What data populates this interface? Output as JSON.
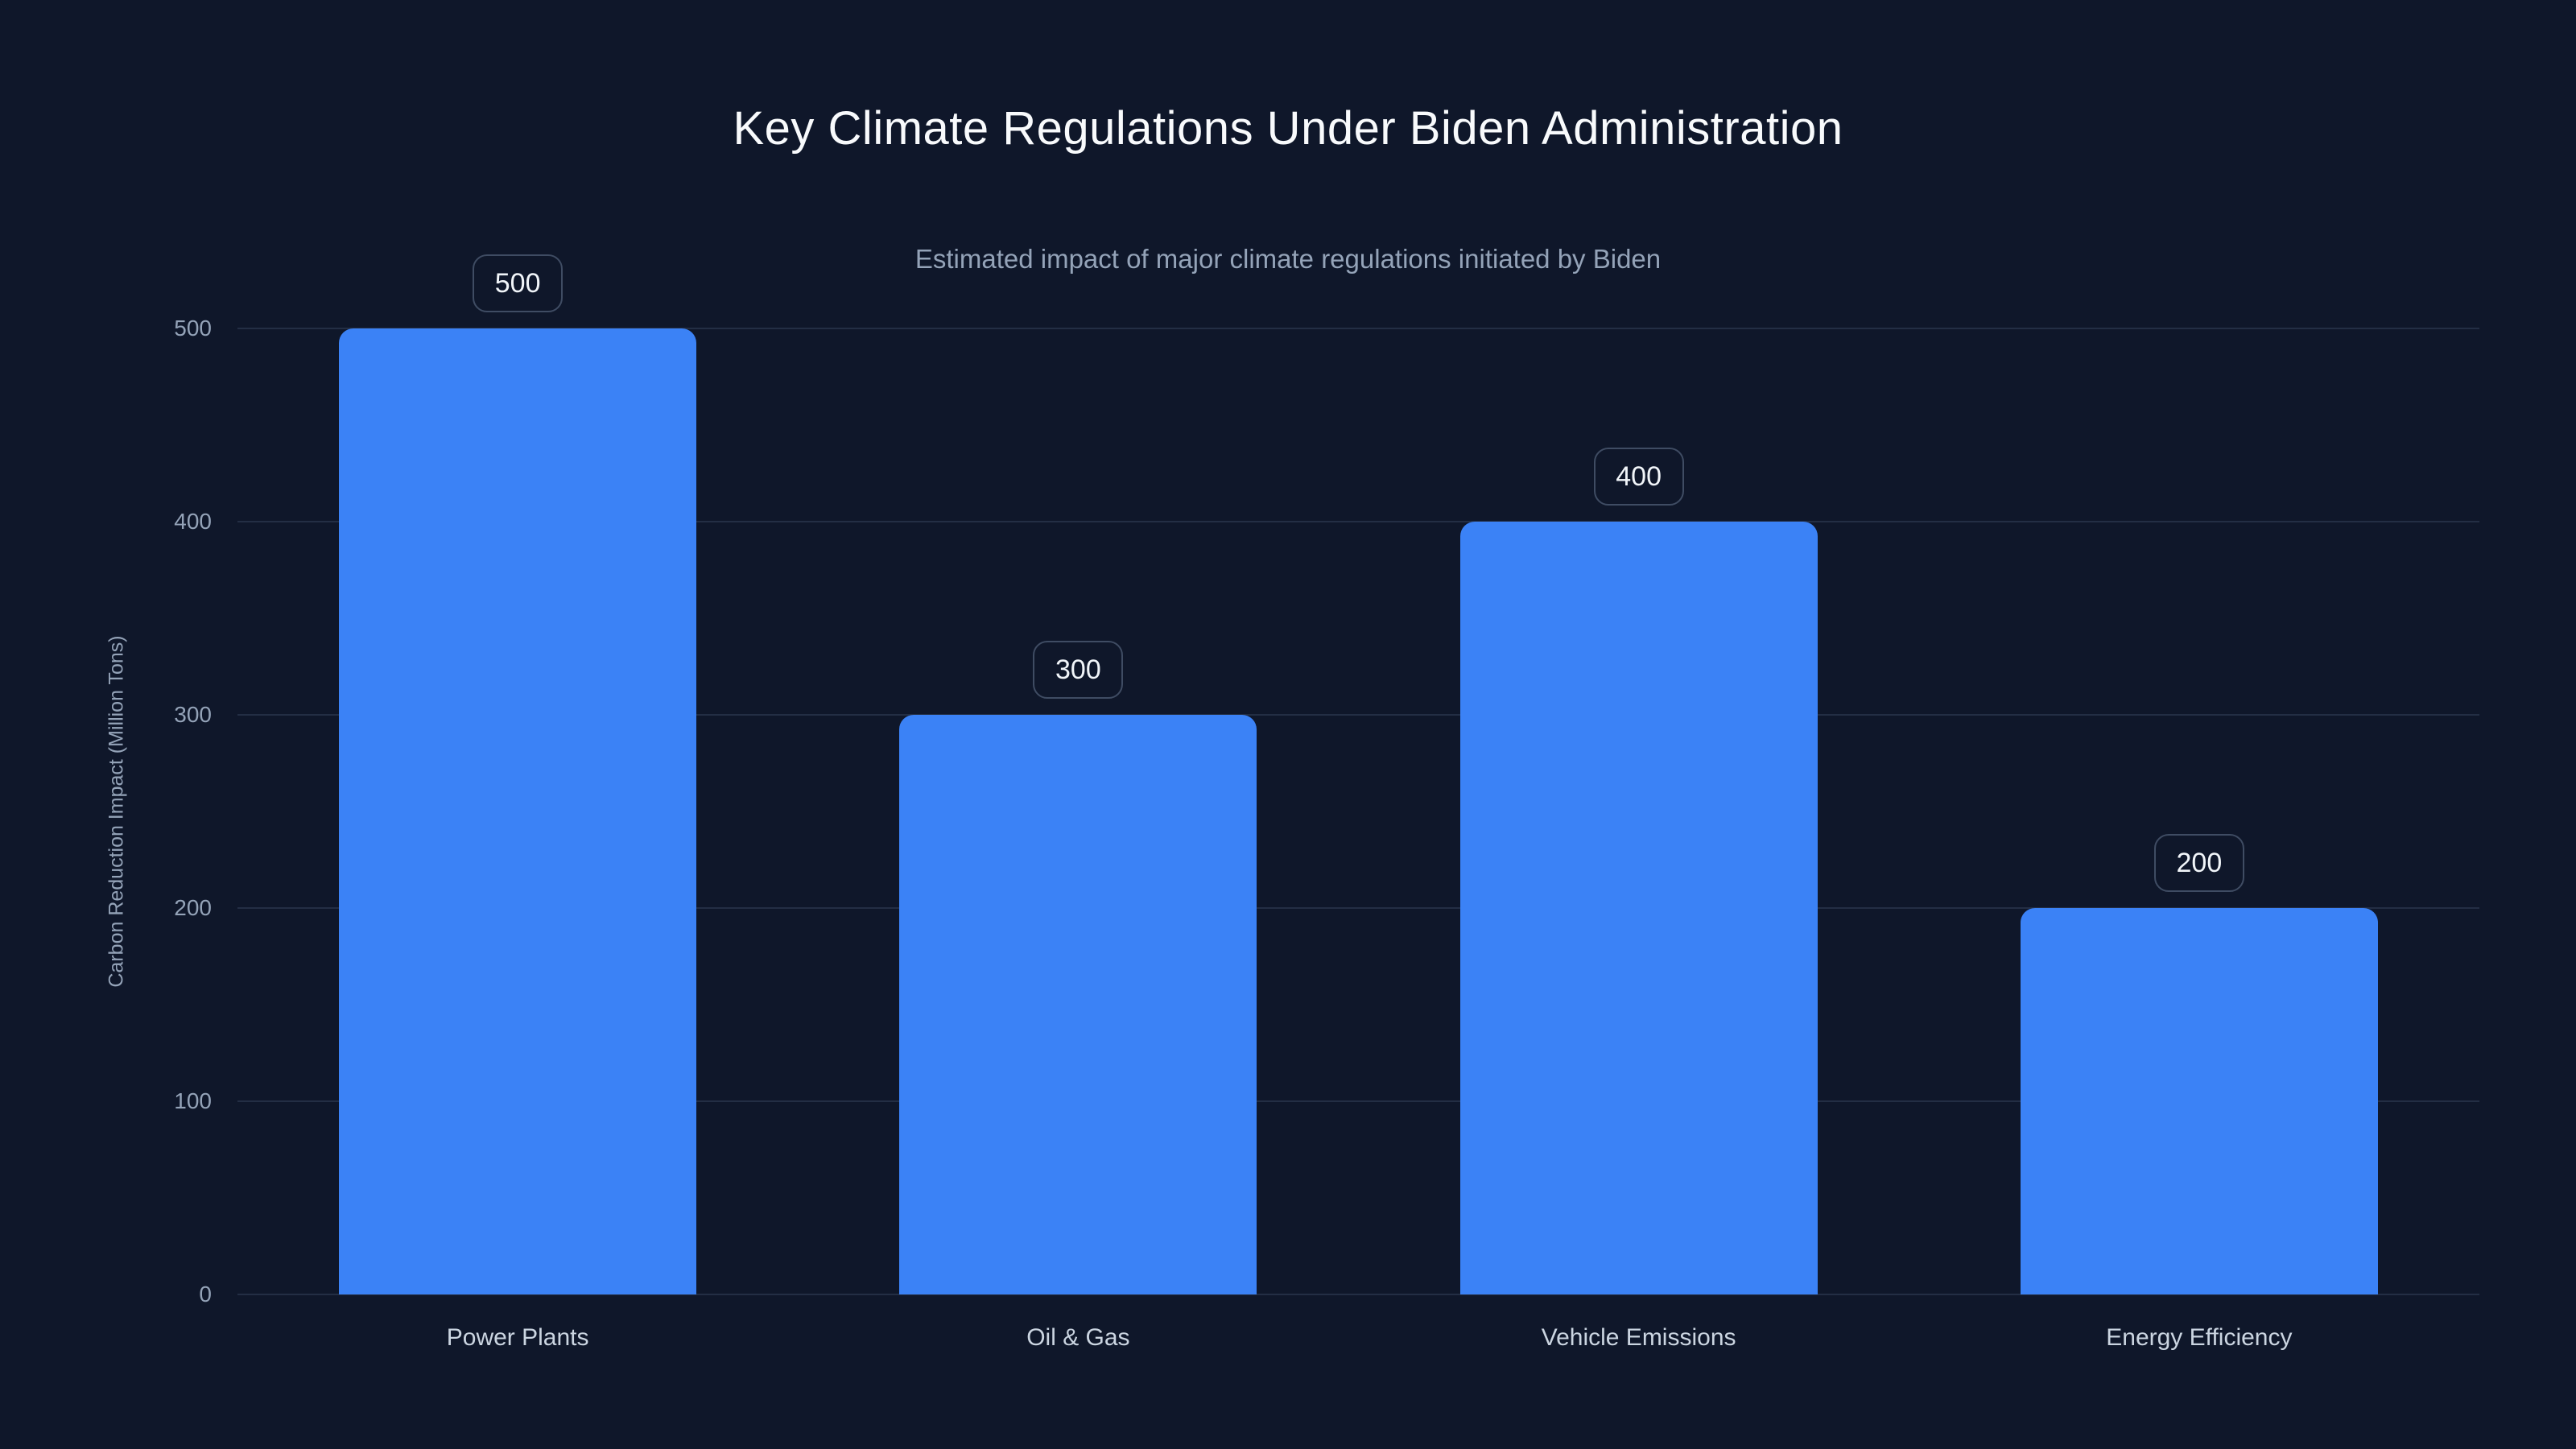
{
  "chart_data": {
    "type": "bar",
    "title": "Key Climate Regulations Under Biden Administration",
    "subtitle": "Estimated impact of major climate regulations initiated by Biden",
    "xlabel": "",
    "ylabel": "Carbon Reduction Impact (Million Tons)",
    "categories": [
      "Power Plants",
      "Oil & Gas",
      "Vehicle Emissions",
      "Energy Efficiency"
    ],
    "values": [
      500,
      300,
      400,
      200
    ],
    "value_labels": [
      "500",
      "300",
      "400",
      "200"
    ],
    "yticks": [
      0,
      100,
      200,
      300,
      400,
      500
    ],
    "ylim": [
      0,
      500
    ],
    "grid": true,
    "legend": false,
    "colors": {
      "background": "#0f172a",
      "bar": "#3b82f6",
      "gridline": "#232e44",
      "tick_text": "#94a3b8",
      "title_text": "#f8fafc",
      "subtitle_text": "#94a3b8",
      "badge_border": "#3f4c63",
      "badge_text": "#f1f5f9",
      "category_text": "#cbd5e1"
    }
  }
}
